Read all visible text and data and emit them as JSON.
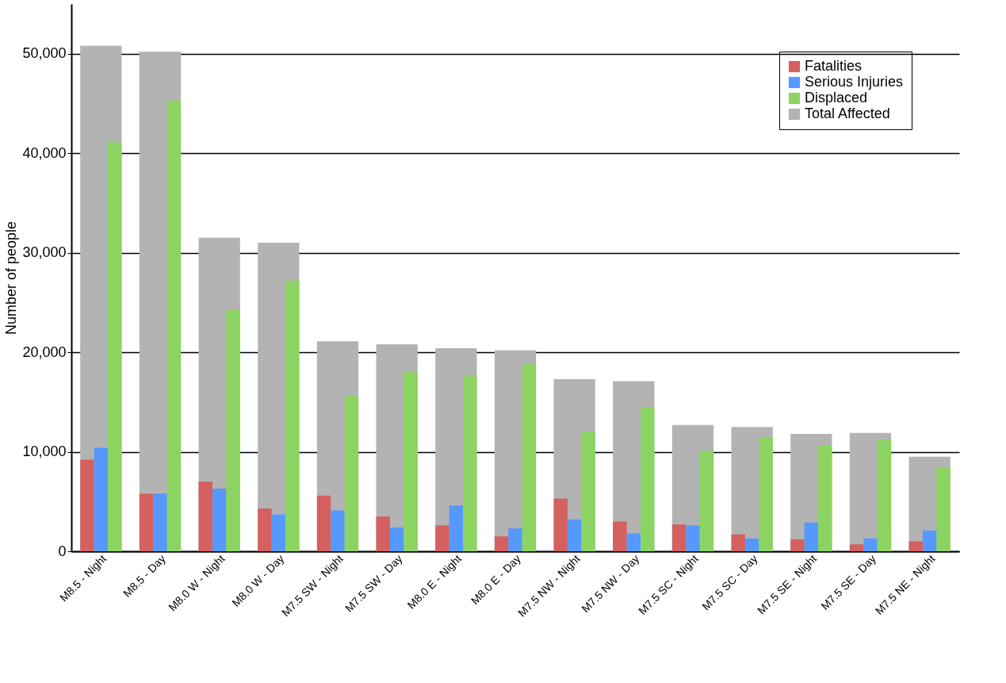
{
  "chart_data": {
    "type": "bar",
    "ylabel": "Number of people",
    "categories": [
      "M8.5 - Night",
      "M8.5 - Day",
      "M8.0 W - Night",
      "M8.0 W - Day",
      "M7.5 SW - Night",
      "M7.5 SW - Day",
      "M8.0 E - Night",
      "M8.0 E - Day",
      "M7.5 NW - Night",
      "M7.5 NW - Day",
      "M7.5 SC - Night",
      "M7.5 SC - Day",
      "M7.5 SE - Night",
      "M7.5 SE - Day",
      "M7.5 NE - Night"
    ],
    "series": [
      {
        "name": "Fatalities",
        "color": "#d46060",
        "values": [
          9200,
          5800,
          7000,
          4300,
          5600,
          3500,
          2600,
          1500,
          5300,
          3000,
          2700,
          1700,
          1200,
          700,
          1000
        ]
      },
      {
        "name": "Serious Injuries",
        "color": "#5599ff",
        "values": [
          10400,
          5800,
          6300,
          3700,
          4100,
          2400,
          4600,
          2300,
          3200,
          1800,
          2600,
          1300,
          2900,
          1300,
          2100
        ]
      },
      {
        "name": "Displaced",
        "color": "#8cd462",
        "values": [
          41100,
          45300,
          24300,
          27200,
          15600,
          18000,
          17600,
          18800,
          12000,
          14400,
          10100,
          11400,
          10600,
          11200,
          8400
        ]
      },
      {
        "name": "Total Affected",
        "color": "#b3b3b3",
        "values": [
          50800,
          50200,
          31500,
          31000,
          21100,
          20800,
          20400,
          20200,
          17300,
          17100,
          12700,
          12500,
          11800,
          11900,
          9500
        ]
      }
    ],
    "ylim": [
      0,
      55000
    ],
    "yticks": [
      0,
      {
        "value": 10000,
        "label": "10,000"
      },
      {
        "value": 20000,
        "label": "20,000"
      },
      {
        "value": 30000,
        "label": "30,000"
      },
      {
        "value": 40000,
        "label": "40,000"
      },
      {
        "value": 50000,
        "label": "50,000"
      }
    ],
    "grid": "y",
    "legend": "top right"
  }
}
